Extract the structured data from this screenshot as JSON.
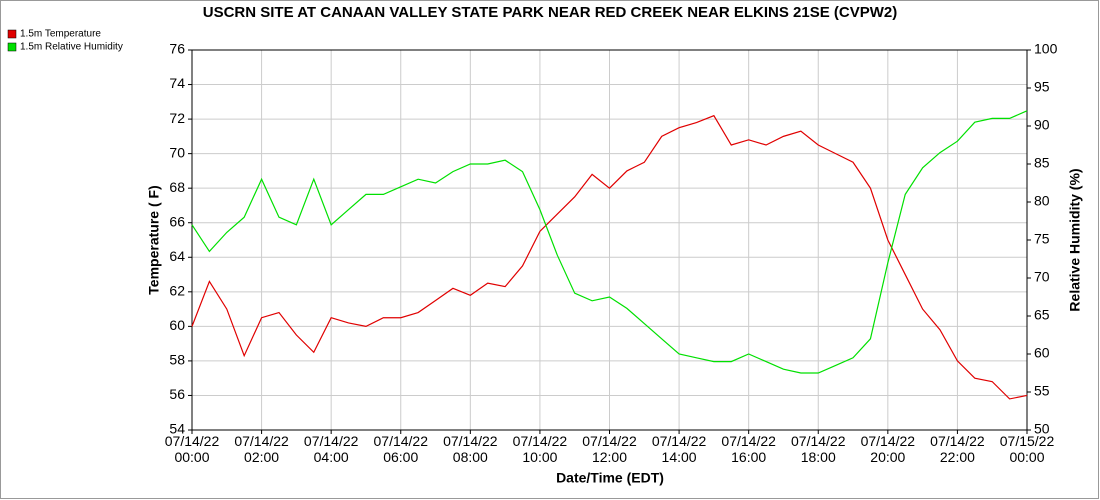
{
  "chart_data": {
    "type": "line",
    "title": "USCRN SITE AT CANAAN VALLEY STATE PARK NEAR RED CREEK NEAR ELKINS 21SE (CVPW2)",
    "xlabel": "Date/Time (EDT)",
    "ylabel": "Temperature ( F)",
    "y2label": "Relative Humidity (%)",
    "x": [
      0,
      0.5,
      1,
      1.5,
      2,
      2.5,
      3,
      3.5,
      4,
      4.5,
      5,
      5.5,
      6,
      6.5,
      7,
      7.5,
      8,
      8.5,
      9,
      9.5,
      10,
      10.5,
      11,
      11.5,
      12,
      12.5,
      13,
      13.5,
      14,
      14.5,
      15,
      15.5,
      16,
      16.5,
      17,
      17.5,
      18,
      18.5,
      19,
      19.5,
      20,
      20.5,
      21,
      21.5,
      22,
      22.5,
      23,
      23.5,
      24
    ],
    "series": [
      {
        "name": "1.5m Temperature",
        "color": "#e00000",
        "axis": "y",
        "values": [
          60.0,
          62.6,
          61.0,
          58.3,
          60.5,
          60.8,
          59.5,
          58.5,
          60.5,
          60.2,
          60.0,
          60.5,
          60.5,
          60.8,
          61.5,
          62.2,
          61.8,
          62.5,
          62.3,
          63.5,
          65.5,
          66.5,
          67.5,
          68.8,
          68.0,
          69.0,
          69.5,
          71.0,
          71.5,
          71.8,
          72.2,
          70.5,
          70.8,
          70.5,
          71.0,
          71.3,
          70.5,
          70.0,
          69.5,
          68.0,
          65.0,
          63.0,
          61.0,
          59.8,
          58.0,
          57.0,
          56.8,
          55.8,
          56.0
        ]
      },
      {
        "name": "1.5m Relative Humidity",
        "color": "#00e000",
        "axis": "y2",
        "values": [
          77,
          73.5,
          76,
          78,
          83,
          78,
          77,
          83,
          77,
          79,
          81,
          81,
          82,
          83,
          82.5,
          84,
          85,
          85,
          85.5,
          84,
          79,
          73,
          68,
          67,
          67.5,
          66,
          64,
          62,
          60,
          59.5,
          59,
          59,
          60,
          59,
          58,
          57.5,
          57.5,
          58.5,
          59.5,
          62,
          72,
          81,
          84.5,
          86.5,
          88,
          90.5,
          91,
          91,
          92
        ]
      }
    ],
    "xlim": [
      0,
      24
    ],
    "xticks": [
      {
        "value": 0,
        "label": "07/14/22 00:00"
      },
      {
        "value": 2,
        "label": "07/14/22 02:00"
      },
      {
        "value": 4,
        "label": "07/14/22 04:00"
      },
      {
        "value": 6,
        "label": "07/14/22 06:00"
      },
      {
        "value": 8,
        "label": "07/14/22 08:00"
      },
      {
        "value": 10,
        "label": "07/14/22 10:00"
      },
      {
        "value": 12,
        "label": "07/14/22 12:00"
      },
      {
        "value": 14,
        "label": "07/14/22 14:00"
      },
      {
        "value": 16,
        "label": "07/14/22 16:00"
      },
      {
        "value": 18,
        "label": "07/14/22 18:00"
      },
      {
        "value": 20,
        "label": "07/14/22 20:00"
      },
      {
        "value": 22,
        "label": "07/14/22 22:00"
      },
      {
        "value": 24,
        "label": "07/15/22 00:00"
      }
    ],
    "ylim": [
      54,
      76
    ],
    "yticks": [
      54,
      56,
      58,
      60,
      62,
      64,
      66,
      68,
      70,
      72,
      74,
      76
    ],
    "y2lim": [
      50,
      100
    ],
    "y2ticks": [
      50,
      55,
      60,
      65,
      70,
      75,
      80,
      85,
      90,
      95,
      100
    ],
    "grid": true,
    "legend": "top-left"
  }
}
